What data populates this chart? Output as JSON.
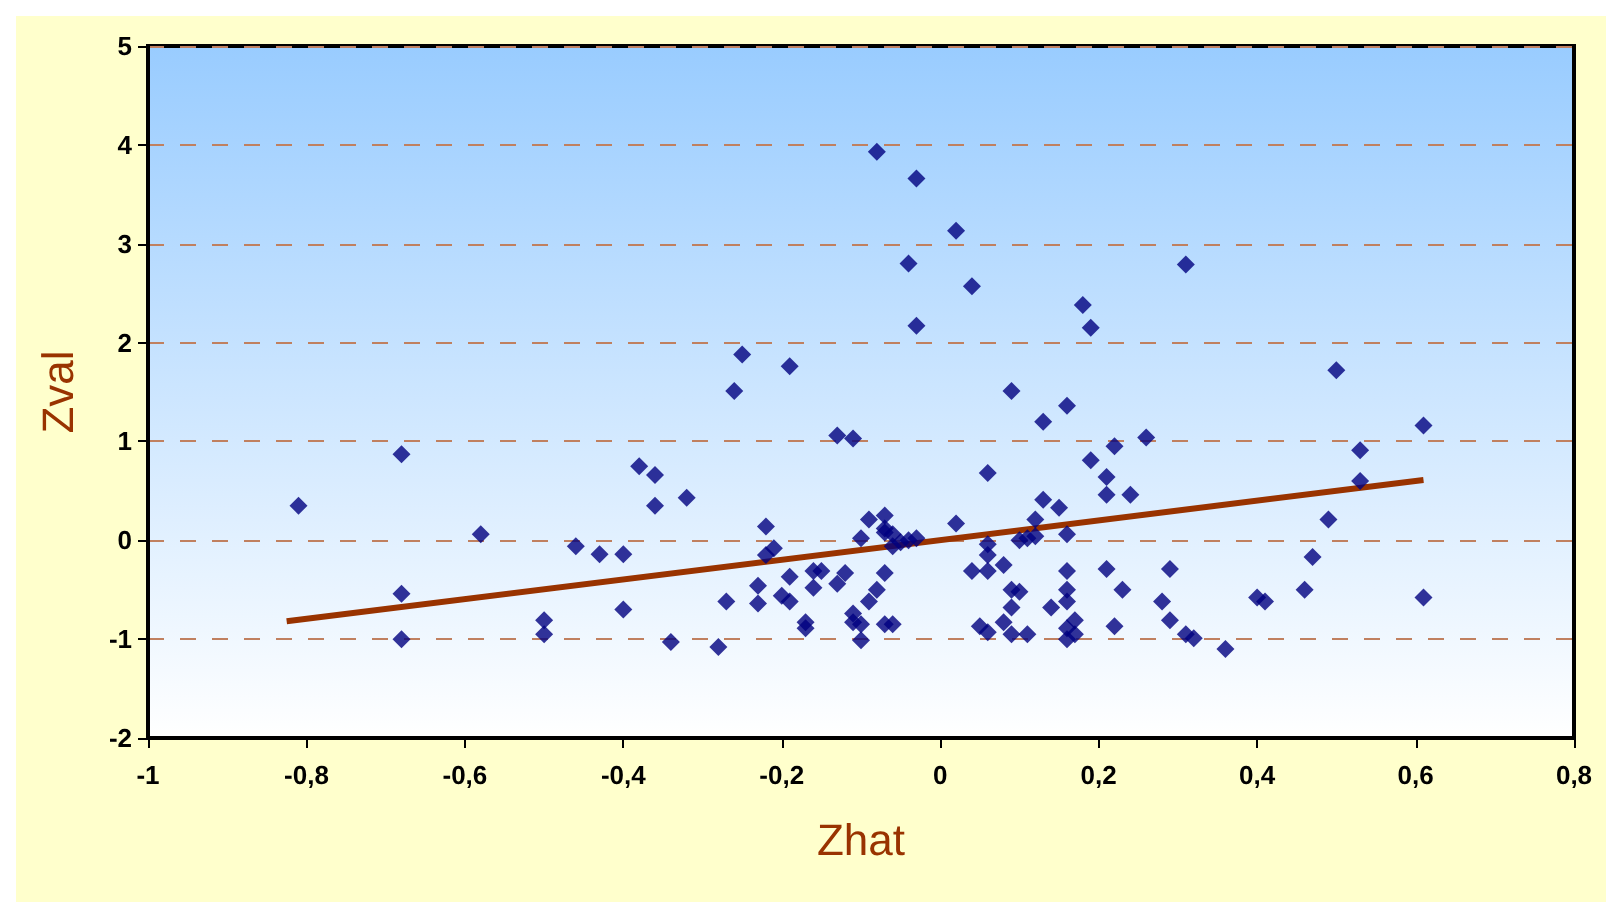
{
  "chart_data": {
    "type": "scatter",
    "xlabel": "Zhat",
    "ylabel": "Zval",
    "marker": "diamond",
    "grid": "y",
    "xlim": [
      -1,
      0.8
    ],
    "ylim": [
      -2,
      5
    ],
    "xticks": [
      {
        "value": -1,
        "label": "-1"
      },
      {
        "value": -0.8,
        "label": "-0,8"
      },
      {
        "value": -0.6,
        "label": "-0,6"
      },
      {
        "value": -0.4,
        "label": "-0,4"
      },
      {
        "value": -0.2,
        "label": "-0,2"
      },
      {
        "value": 0,
        "label": "0"
      },
      {
        "value": 0.2,
        "label": "0,2"
      },
      {
        "value": 0.4,
        "label": "0,4"
      },
      {
        "value": 0.6,
        "label": "0,6"
      },
      {
        "value": 0.8,
        "label": "0,8"
      }
    ],
    "yticks": [
      -2,
      -1,
      0,
      1,
      2,
      3,
      4,
      5
    ],
    "series": [
      {
        "color": "#000080",
        "x": [
          -0.81,
          -0.68,
          -0.68,
          -0.68,
          -0.58,
          -0.5,
          -0.5,
          -0.46,
          -0.43,
          -0.4,
          -0.4,
          -0.38,
          -0.36,
          -0.36,
          -0.32,
          -0.34,
          -0.28,
          -0.27,
          -0.26,
          -0.25,
          -0.19,
          -0.23,
          -0.23,
          -0.22,
          -0.21,
          -0.22,
          -0.19,
          -0.19,
          -0.2,
          -0.17,
          -0.17,
          -0.16,
          -0.15,
          -0.16,
          -0.13,
          -0.11,
          -0.12,
          -0.13,
          -0.11,
          -0.11,
          -0.1,
          -0.1,
          -0.09,
          -0.08,
          -0.1,
          -0.09,
          -0.08,
          -0.07,
          -0.07,
          -0.07,
          -0.07,
          -0.06,
          -0.06,
          -0.06,
          -0.05,
          -0.07,
          -0.04,
          -0.04,
          -0.03,
          -0.03,
          -0.03,
          0.02,
          0.02,
          0.04,
          0.04,
          0.05,
          0.06,
          0.06,
          0.06,
          0.06,
          0.08,
          0.06,
          0.08,
          0.09,
          0.09,
          0.09,
          0.09,
          0.1,
          0.1,
          0.11,
          0.11,
          0.12,
          0.12,
          0.13,
          0.13,
          0.14,
          0.15,
          0.16,
          0.16,
          0.16,
          0.16,
          0.16,
          0.17,
          0.16,
          0.16,
          0.18,
          0.19,
          0.19,
          0.17,
          0.21,
          0.21,
          0.21,
          0.22,
          0.23,
          0.22,
          0.24,
          0.26,
          0.28,
          0.29,
          0.29,
          0.31,
          0.31,
          0.32,
          0.36,
          0.4,
          0.41,
          0.46,
          0.47,
          0.49,
          0.5,
          0.53,
          0.53,
          0.61,
          0.61
        ],
        "values": [
          0.35,
          0.87,
          -0.54,
          -1.0,
          0.06,
          -0.81,
          -0.95,
          -0.06,
          -0.14,
          -0.14,
          -0.7,
          0.75,
          0.66,
          0.35,
          0.43,
          -1.03,
          -1.08,
          -0.62,
          1.51,
          1.88,
          1.76,
          -0.64,
          -0.46,
          0.14,
          -0.08,
          -0.15,
          -0.37,
          -0.62,
          -0.56,
          -0.83,
          -0.89,
          -0.31,
          -0.31,
          -0.48,
          1.06,
          1.03,
          -0.33,
          -0.44,
          -0.83,
          -0.74,
          -1.01,
          -0.85,
          -0.62,
          -0.5,
          0.02,
          0.21,
          3.93,
          0.12,
          0.08,
          -0.85,
          0.25,
          -0.85,
          0.06,
          -0.06,
          -0.02,
          -0.33,
          0.0,
          2.8,
          2.17,
          3.66,
          0.02,
          0.17,
          3.13,
          2.57,
          -0.31,
          -0.87,
          0.68,
          -0.15,
          -0.04,
          -0.31,
          -0.83,
          -0.93,
          -0.25,
          1.51,
          -0.5,
          -0.68,
          -0.95,
          -0.52,
          0.0,
          0.02,
          -0.95,
          0.04,
          0.21,
          0.41,
          1.2,
          -0.68,
          0.33,
          -0.89,
          1.36,
          -0.5,
          -0.31,
          -0.62,
          -0.95,
          -1.0,
          0.06,
          2.38,
          2.15,
          0.81,
          -0.81,
          0.64,
          0.46,
          -0.29,
          0.95,
          -0.5,
          -0.87,
          0.46,
          1.04,
          -0.62,
          -0.81,
          -0.29,
          -0.95,
          2.79,
          -0.99,
          -1.1,
          -0.58,
          -0.62,
          -0.5,
          -0.17,
          0.21,
          1.72,
          0.91,
          0.6,
          1.16,
          -0.58
        ]
      },
      {
        "type": "line",
        "color": "#993300",
        "marker": "none",
        "x": [
          -0.825,
          0.61
        ],
        "values": [
          -0.82,
          0.61
        ]
      }
    ]
  }
}
